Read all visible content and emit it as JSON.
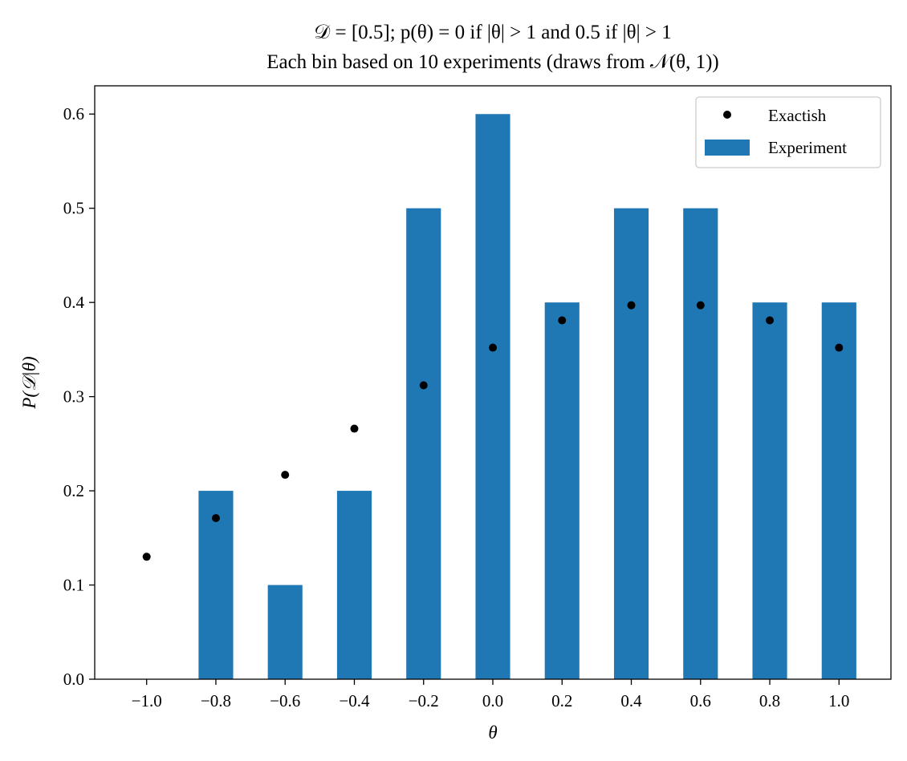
{
  "chart_data": {
    "type": "bar",
    "title": "𝒟 = [0.5]; p(θ) = 0 if |θ| > 1 and 0.5 if |θ| > 1",
    "subtitle": "Each bin based on 10 experiments (draws from 𝒩(θ, 1))",
    "xlabel": "θ",
    "ylabel": "P(𝒟|θ)",
    "xlim": [
      -1.15,
      1.15
    ],
    "ylim": [
      0,
      0.63
    ],
    "x": [
      -1.0,
      -0.8,
      -0.6,
      -0.4,
      -0.2,
      0.0,
      0.2,
      0.4,
      0.6,
      0.8,
      1.0
    ],
    "x_tick_labels": [
      "−1.0",
      "−0.8",
      "−0.6",
      "−0.4",
      "−0.2",
      "0.0",
      "0.2",
      "0.4",
      "0.6",
      "0.8",
      "1.0"
    ],
    "y_ticks": [
      0.0,
      0.1,
      0.2,
      0.3,
      0.4,
      0.5,
      0.6
    ],
    "y_tick_labels": [
      "0.0",
      "0.1",
      "0.2",
      "0.3",
      "0.4",
      "0.5",
      "0.6"
    ],
    "grid": false,
    "legend_position": "top-right",
    "series": [
      {
        "name": "Exactish",
        "kind": "points",
        "color": "#000000",
        "values": [
          0.13,
          0.171,
          0.217,
          0.266,
          0.312,
          0.352,
          0.381,
          0.397,
          0.397,
          0.381,
          0.352
        ]
      },
      {
        "name": "Experiment",
        "kind": "bars",
        "color": "#1f77b4",
        "values": [
          0.0,
          0.2,
          0.1,
          0.2,
          0.5,
          0.6,
          0.4,
          0.5,
          0.5,
          0.4,
          0.4
        ]
      }
    ]
  }
}
